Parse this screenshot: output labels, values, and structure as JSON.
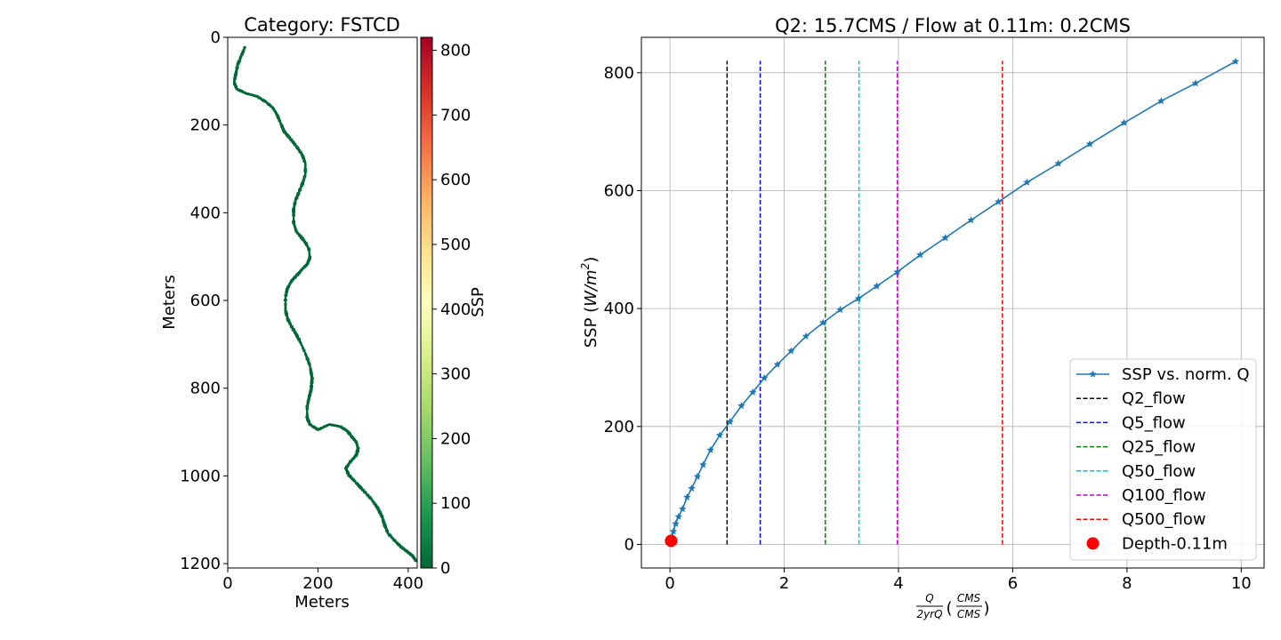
{
  "chart_data": [
    {
      "type": "heatmap",
      "title": "Category: FSTCD",
      "xlabel": "Meters",
      "ylabel": "Meters",
      "xlim": [
        0,
        420
      ],
      "ylim": [
        1210,
        0
      ],
      "y_inverted": true,
      "xticks": [
        0,
        200,
        400
      ],
      "yticks": [
        0,
        200,
        400,
        600,
        800,
        1000,
        1200
      ],
      "colormap": "RdYlGn_r",
      "colorbar": {
        "label": "SSP",
        "range": [
          0,
          820
        ],
        "ticks": [
          0,
          100,
          200,
          300,
          400,
          500,
          600,
          700,
          800
        ],
        "colors": [
          "#006837",
          "#1a9850",
          "#66bd63",
          "#a6d96a",
          "#d9ef8b",
          "#ffffbf",
          "#fee08b",
          "#fdae61",
          "#f46d43",
          "#d73027",
          "#a50026"
        ]
      },
      "channel_path": {
        "x": [
          38,
          30,
          22,
          18,
          14,
          20,
          40,
          65,
          85,
          100,
          110,
          118,
          125,
          140,
          155,
          165,
          172,
          172,
          166,
          158,
          150,
          146,
          146,
          152,
          162,
          172,
          180,
          182,
          176,
          166,
          155,
          142,
          132,
          128,
          128,
          133,
          142,
          152,
          162,
          172,
          182,
          187,
          185,
          180,
          176,
          176,
          182,
          200,
          225,
          250,
          265,
          275,
          285,
          289,
          285,
          272,
          262,
          268,
          282,
          300,
          318,
          332,
          342,
          348,
          355,
          370,
          385,
          398,
          410,
          418
        ],
        "y": [
          20,
          40,
          60,
          80,
          100,
          115,
          125,
          132,
          145,
          158,
          175,
          195,
          212,
          230,
          250,
          265,
          285,
          310,
          330,
          350,
          370,
          390,
          420,
          440,
          452,
          465,
          480,
          500,
          515,
          525,
          538,
          552,
          570,
          590,
          620,
          640,
          658,
          675,
          695,
          718,
          745,
          775,
          800,
          820,
          840,
          865,
          880,
          892,
          880,
          885,
          895,
          908,
          920,
          935,
          950,
          965,
          980,
          995,
          1010,
          1030,
          1050,
          1070,
          1090,
          1110,
          1128,
          1145,
          1160,
          1170,
          1180,
          1192
        ],
        "ssp_approx": 10
      }
    },
    {
      "type": "line",
      "title": "Q2: 15.7CMS / Flow at 0.11m: 0.2CMS",
      "xlabel": "Q / 2yrQ (CMS / CMS)",
      "xlabel_parts": {
        "frac_num": "Q",
        "frac_den": "2yrQ",
        "unit_num": "CMS",
        "unit_den": "CMS"
      },
      "ylabel": "SSP (W/m²)",
      "ylabel_parts": {
        "prefix": "SSP (",
        "unit": "W/m",
        "sup": "2",
        "suffix": ")"
      },
      "xlim": [
        -0.5,
        10.4
      ],
      "ylim": [
        -40,
        860
      ],
      "xticks": [
        0,
        2,
        4,
        6,
        8,
        10
      ],
      "yticks": [
        0,
        200,
        400,
        600,
        800
      ],
      "grid": true,
      "legend_position": "lower-right",
      "series": [
        {
          "name": "SSP vs. norm. Q",
          "color": "#1f77b4",
          "marker": "star",
          "x": [
            0.012,
            0.03,
            0.06,
            0.1,
            0.15,
            0.22,
            0.3,
            0.38,
            0.48,
            0.58,
            0.71,
            0.87,
            1.05,
            1.25,
            1.45,
            1.65,
            1.88,
            2.12,
            2.38,
            2.68,
            2.98,
            3.3,
            3.62,
            3.98,
            4.38,
            4.82,
            5.27,
            5.75,
            6.25,
            6.8,
            7.35,
            7.95,
            8.6,
            9.2,
            9.9
          ],
          "y": [
            4,
            10,
            22,
            35,
            47,
            60,
            80,
            95,
            115,
            135,
            160,
            185,
            208,
            235,
            258,
            282,
            305,
            328,
            353,
            376,
            398,
            417,
            438,
            462,
            491,
            520,
            550,
            581,
            614,
            646,
            679,
            715,
            752,
            782,
            819
          ]
        }
      ],
      "vlines": [
        {
          "name": "Q2_flow",
          "x": 1.0,
          "color": "#000000",
          "ymax": 820
        },
        {
          "name": "Q5_flow",
          "x": 1.58,
          "color": "#0000ff",
          "ymax": 820
        },
        {
          "name": "Q25_flow",
          "x": 2.72,
          "color": "#008000",
          "ymax": 820
        },
        {
          "name": "Q50_flow",
          "x": 3.31,
          "color": "#00cccc",
          "ymax": 820
        },
        {
          "name": "Q100_flow",
          "x": 3.98,
          "color": "#bf00bf",
          "ymax": 820
        },
        {
          "name": "Q500_flow",
          "x": 5.82,
          "color": "#ff0000",
          "ymax": 820
        }
      ],
      "points": [
        {
          "name": "Depth-0.11m",
          "x": 0.02,
          "y": 6,
          "color": "#ff0000"
        }
      ]
    }
  ]
}
